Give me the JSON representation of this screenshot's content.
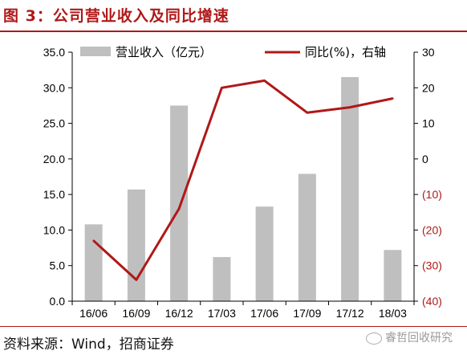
{
  "header": {
    "title": "图 3：公司营业收入及同比增速"
  },
  "footer": {
    "source": "资料来源：Wind，招商证券",
    "watermark": "睿哲回收研究"
  },
  "colors": {
    "bar": "#bfbfbf",
    "line": "#b01818",
    "title": "#b01818",
    "right_axis_negative": "#b01818"
  },
  "chart_data": {
    "type": "bar",
    "categories": [
      "16/06",
      "16/09",
      "16/12",
      "17/03",
      "17/06",
      "17/09",
      "17/12",
      "18/03"
    ],
    "series": [
      {
        "name": "营业收入（亿元）",
        "type": "bar",
        "axis": "left",
        "values": [
          10.8,
          15.7,
          27.5,
          6.2,
          13.3,
          17.9,
          31.5,
          7.2
        ]
      },
      {
        "name": "同比(%)，右轴",
        "type": "line",
        "axis": "right",
        "values": [
          -23,
          -34,
          -14,
          20,
          22,
          13,
          14.5,
          17
        ]
      }
    ],
    "y_left": {
      "min": 0,
      "max": 35,
      "ticks": [
        "0.0",
        "5.0",
        "10.0",
        "15.0",
        "20.0",
        "25.0",
        "30.0",
        "35.0"
      ]
    },
    "y_right": {
      "min": -40,
      "max": 30,
      "ticks": [
        "(40)",
        "(30)",
        "(20)",
        "(10)",
        "0",
        "10",
        "20",
        "30"
      ]
    },
    "legend": {
      "position": "top",
      "items": [
        "营业收入（亿元）",
        "同比(%)，右轴"
      ]
    },
    "grid": false
  }
}
